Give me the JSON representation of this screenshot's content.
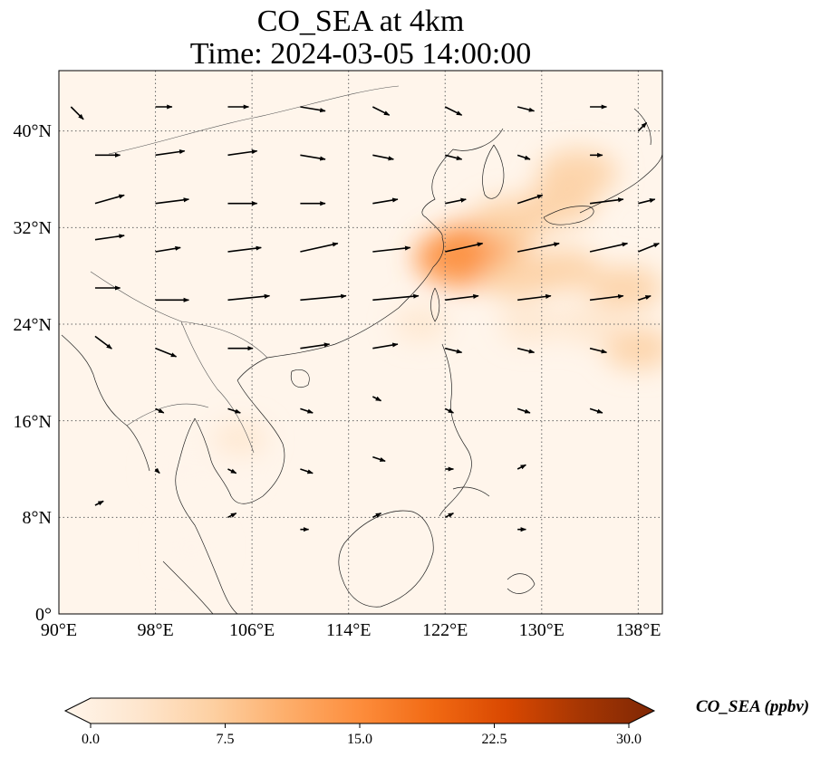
{
  "title": {
    "line1": "CO_SEA at 4km",
    "line2": "Time: 2024-03-05 14:00:00"
  },
  "map": {
    "lon_range": [
      90,
      140
    ],
    "lat_range": [
      0,
      45
    ],
    "gridlines": true,
    "x_ticks": [
      "90°E",
      "98°E",
      "106°E",
      "114°E",
      "122°E",
      "130°E",
      "138°E"
    ],
    "y_ticks": [
      "0°",
      "8°N",
      "16°N",
      "24°N",
      "32°N",
      "40°N"
    ]
  },
  "colorbar": {
    "label": "CO_SEA (ppbv)",
    "ticks": [
      "0.0",
      "7.5",
      "15.0",
      "22.5",
      "30.0"
    ],
    "range": [
      0,
      30
    ],
    "extend": "both",
    "colormap": [
      "#fff5eb",
      "#fee6ce",
      "#fdd0a2",
      "#fdae6b",
      "#fd8d3c",
      "#f16913",
      "#d94801",
      "#a63603",
      "#7f2704"
    ]
  },
  "chart_data": {
    "type": "heatmap",
    "variable": "CO_SEA",
    "units": "ppbv",
    "level": "4km",
    "time": "2024-03-05 14:00:00",
    "xlim": [
      90,
      140
    ],
    "ylim": [
      0,
      45
    ],
    "plume_regions": [
      {
        "lon": 125,
        "lat": 30.5,
        "value": 12
      },
      {
        "lon": 123.5,
        "lat": 29.5,
        "value": 14
      },
      {
        "lon": 127.5,
        "lat": 32.5,
        "value": 9
      },
      {
        "lon": 133,
        "lat": 36.5,
        "value": 9
      },
      {
        "lon": 131.5,
        "lat": 34,
        "value": 7
      },
      {
        "lon": 128,
        "lat": 28,
        "value": 8
      },
      {
        "lon": 132,
        "lat": 28.5,
        "value": 6
      },
      {
        "lon": 137,
        "lat": 27,
        "value": 7
      },
      {
        "lon": 138,
        "lat": 22,
        "value": 6
      },
      {
        "lon": 134,
        "lat": 24,
        "value": 5
      },
      {
        "lon": 129,
        "lat": 24,
        "value": 4
      },
      {
        "lon": 120,
        "lat": 24,
        "value": 2
      },
      {
        "lon": 105,
        "lat": 14.5,
        "value": 2
      },
      {
        "lon": 104,
        "lat": 12,
        "value": 1.5
      },
      {
        "lon": 100,
        "lat": 12,
        "value": 1.5
      },
      {
        "lon": 101,
        "lat": 5.5,
        "value": 1.5
      }
    ],
    "wind_vectors": [
      {
        "lon": 91,
        "lat": 42,
        "u": 3,
        "v": -3
      },
      {
        "lon": 93,
        "lat": 38,
        "u": 6,
        "v": 0
      },
      {
        "lon": 93,
        "lat": 34,
        "u": 7,
        "v": 2
      },
      {
        "lon": 93,
        "lat": 31,
        "u": 7,
        "v": 1
      },
      {
        "lon": 93,
        "lat": 27,
        "u": 6,
        "v": 0
      },
      {
        "lon": 93,
        "lat": 23,
        "u": 4,
        "v": -3
      },
      {
        "lon": 98,
        "lat": 42,
        "u": 4,
        "v": 0
      },
      {
        "lon": 98,
        "lat": 38,
        "u": 7,
        "v": 1
      },
      {
        "lon": 98,
        "lat": 34,
        "u": 8,
        "v": 1
      },
      {
        "lon": 98,
        "lat": 30,
        "u": 6,
        "v": 1
      },
      {
        "lon": 98,
        "lat": 26,
        "u": 8,
        "v": 0
      },
      {
        "lon": 98,
        "lat": 22,
        "u": 5,
        "v": -2
      },
      {
        "lon": 98,
        "lat": 17,
        "u": 2,
        "v": -1
      },
      {
        "lon": 98,
        "lat": 12,
        "u": 1,
        "v": -1
      },
      {
        "lon": 93,
        "lat": 9,
        "u": 2,
        "v": 1
      },
      {
        "lon": 104,
        "lat": 42,
        "u": 5,
        "v": 0
      },
      {
        "lon": 104,
        "lat": 38,
        "u": 7,
        "v": 1
      },
      {
        "lon": 104,
        "lat": 34,
        "u": 7,
        "v": 0
      },
      {
        "lon": 104,
        "lat": 30,
        "u": 8,
        "v": 1
      },
      {
        "lon": 104,
        "lat": 26,
        "u": 10,
        "v": 1
      },
      {
        "lon": 104,
        "lat": 22,
        "u": 6,
        "v": 0
      },
      {
        "lon": 104,
        "lat": 17,
        "u": 3,
        "v": -1
      },
      {
        "lon": 104,
        "lat": 12,
        "u": 2,
        "v": -1
      },
      {
        "lon": 104,
        "lat": 8,
        "u": 2,
        "v": 1
      },
      {
        "lon": 110,
        "lat": 42,
        "u": 6,
        "v": -1
      },
      {
        "lon": 110,
        "lat": 38,
        "u": 6,
        "v": -1
      },
      {
        "lon": 110,
        "lat": 34,
        "u": 6,
        "v": 0
      },
      {
        "lon": 110,
        "lat": 30,
        "u": 9,
        "v": 2
      },
      {
        "lon": 110,
        "lat": 26,
        "u": 11,
        "v": 1
      },
      {
        "lon": 110,
        "lat": 22,
        "u": 7,
        "v": 1
      },
      {
        "lon": 110,
        "lat": 17,
        "u": 3,
        "v": -1
      },
      {
        "lon": 110,
        "lat": 12,
        "u": 3,
        "v": -1
      },
      {
        "lon": 110,
        "lat": 7,
        "u": 2,
        "v": 0
      },
      {
        "lon": 116,
        "lat": 42,
        "u": 4,
        "v": -2
      },
      {
        "lon": 116,
        "lat": 38,
        "u": 5,
        "v": -1
      },
      {
        "lon": 116,
        "lat": 34,
        "u": 6,
        "v": 1
      },
      {
        "lon": 116,
        "lat": 30,
        "u": 9,
        "v": 1
      },
      {
        "lon": 116,
        "lat": 26,
        "u": 11,
        "v": 1
      },
      {
        "lon": 116,
        "lat": 22,
        "u": 6,
        "v": 1
      },
      {
        "lon": 116,
        "lat": 18,
        "u": 2,
        "v": -1
      },
      {
        "lon": 116,
        "lat": 13,
        "u": 3,
        "v": -1
      },
      {
        "lon": 116,
        "lat": 8,
        "u": 2,
        "v": 1
      },
      {
        "lon": 122,
        "lat": 42,
        "u": 4,
        "v": -2
      },
      {
        "lon": 122,
        "lat": 38,
        "u": 4,
        "v": -1
      },
      {
        "lon": 122,
        "lat": 34,
        "u": 5,
        "v": 1
      },
      {
        "lon": 122,
        "lat": 30,
        "u": 9,
        "v": 2
      },
      {
        "lon": 122,
        "lat": 26,
        "u": 8,
        "v": 1
      },
      {
        "lon": 122,
        "lat": 22,
        "u": 4,
        "v": -1
      },
      {
        "lon": 122,
        "lat": 17,
        "u": 2,
        "v": -1
      },
      {
        "lon": 122,
        "lat": 12,
        "u": 2,
        "v": 0
      },
      {
        "lon": 122,
        "lat": 8,
        "u": 2,
        "v": 1
      },
      {
        "lon": 128,
        "lat": 42,
        "u": 4,
        "v": -1
      },
      {
        "lon": 128,
        "lat": 38,
        "u": 3,
        "v": -1
      },
      {
        "lon": 128,
        "lat": 34,
        "u": 6,
        "v": 2
      },
      {
        "lon": 128,
        "lat": 30,
        "u": 10,
        "v": 2
      },
      {
        "lon": 128,
        "lat": 26,
        "u": 8,
        "v": 1
      },
      {
        "lon": 128,
        "lat": 22,
        "u": 4,
        "v": -1
      },
      {
        "lon": 128,
        "lat": 17,
        "u": 3,
        "v": -1
      },
      {
        "lon": 128,
        "lat": 12,
        "u": 2,
        "v": 1
      },
      {
        "lon": 128,
        "lat": 7,
        "u": 2,
        "v": 0
      },
      {
        "lon": 134,
        "lat": 42,
        "u": 4,
        "v": 0
      },
      {
        "lon": 134,
        "lat": 38,
        "u": 3,
        "v": 0
      },
      {
        "lon": 134,
        "lat": 34,
        "u": 8,
        "v": 1
      },
      {
        "lon": 134,
        "lat": 30,
        "u": 9,
        "v": 2
      },
      {
        "lon": 134,
        "lat": 26,
        "u": 8,
        "v": 1
      },
      {
        "lon": 134,
        "lat": 22,
        "u": 4,
        "v": -1
      },
      {
        "lon": 134,
        "lat": 17,
        "u": 3,
        "v": -1
      },
      {
        "lon": 138,
        "lat": 40,
        "u": 2,
        "v": 2
      },
      {
        "lon": 138,
        "lat": 34,
        "u": 4,
        "v": 1
      },
      {
        "lon": 138,
        "lat": 30,
        "u": 5,
        "v": 2
      },
      {
        "lon": 138,
        "lat": 26,
        "u": 3,
        "v": 1
      }
    ]
  }
}
